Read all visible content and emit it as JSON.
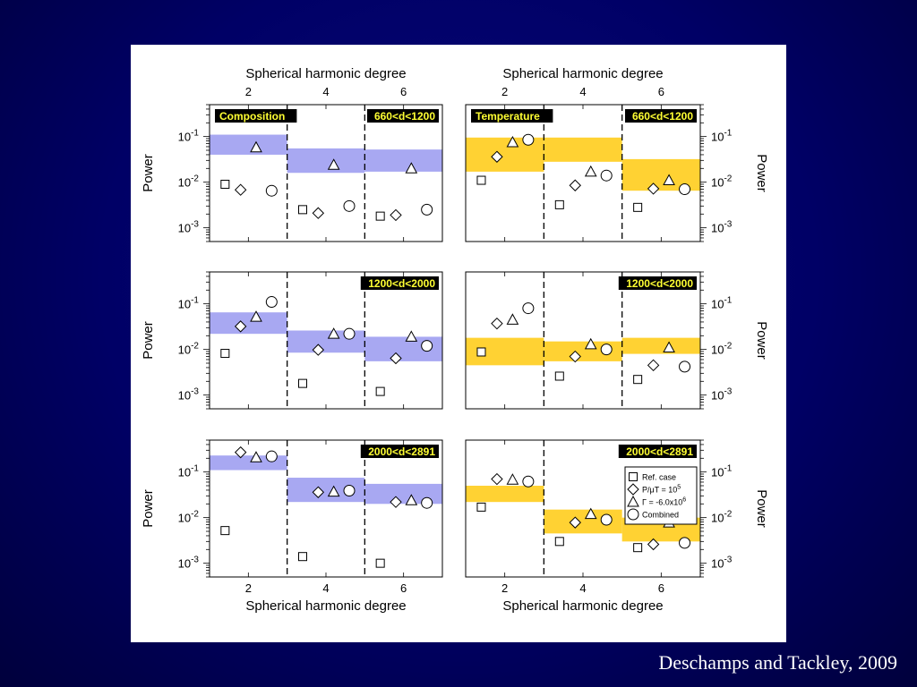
{
  "slide": {
    "citation": "Deschamps and Tackley, 2009"
  },
  "figure": {
    "top_axis_label": "Spherical harmonic degree",
    "bottom_axis_label": "Spherical harmonic degree",
    "ylabel": "Power",
    "x_ticks": [
      2,
      4,
      6
    ],
    "y_tick_labels": [
      "10-1",
      "10-2",
      "10-3"
    ]
  },
  "legend": {
    "entries": [
      {
        "marker": "square",
        "label": "Ref. case"
      },
      {
        "marker": "diamond",
        "label": "P/μT = 10^5"
      },
      {
        "marker": "triangle",
        "label": "Γ = -6.0x10^6"
      },
      {
        "marker": "circle",
        "label": "Combined"
      }
    ]
  },
  "colors": {
    "composition_band": "#a8a8f2",
    "temperature_band": "#ffd233",
    "background": "#000066"
  },
  "chart_data": [
    {
      "type": "scatter",
      "column": "Composition",
      "title": "Composition",
      "range_label": "660<d<1200",
      "xlim": [
        1,
        7
      ],
      "ylim": [
        0.0005,
        0.5
      ],
      "yscale": "log",
      "dividers": [
        3,
        5
      ],
      "bands": [
        {
          "x": [
            1,
            3
          ],
          "y": [
            0.04,
            0.11
          ]
        },
        {
          "x": [
            3,
            5
          ],
          "y": [
            0.016,
            0.055
          ]
        },
        {
          "x": [
            5,
            7
          ],
          "y": [
            0.017,
            0.052
          ]
        }
      ],
      "series": [
        {
          "marker": "square",
          "x": [
            1.4,
            3.4,
            5.4
          ],
          "y": [
            0.009,
            0.0025,
            0.0018
          ]
        },
        {
          "marker": "diamond",
          "x": [
            1.8,
            3.8,
            5.8
          ],
          "y": [
            0.0068,
            0.0021,
            0.0019
          ]
        },
        {
          "marker": "triangle",
          "x": [
            2.2,
            4.2,
            6.2
          ],
          "y": [
            0.058,
            0.024,
            0.02
          ]
        },
        {
          "marker": "circle",
          "x": [
            2.6,
            4.6,
            6.6
          ],
          "y": [
            0.0065,
            0.003,
            0.0025
          ]
        }
      ]
    },
    {
      "type": "scatter",
      "column": "Temperature",
      "title": "Temperature",
      "range_label": "660<d<1200",
      "xlim": [
        1,
        7
      ],
      "ylim": [
        0.0005,
        0.5
      ],
      "yscale": "log",
      "dividers": [
        3,
        5
      ],
      "bands": [
        {
          "x": [
            1,
            3
          ],
          "y": [
            0.017,
            0.095
          ]
        },
        {
          "x": [
            3,
            5
          ],
          "y": [
            0.028,
            0.095
          ]
        },
        {
          "x": [
            5,
            7
          ],
          "y": [
            0.0065,
            0.032
          ]
        }
      ],
      "series": [
        {
          "marker": "square",
          "x": [
            1.4,
            3.4,
            5.4
          ],
          "y": [
            0.011,
            0.0032,
            0.0028
          ]
        },
        {
          "marker": "diamond",
          "x": [
            1.8,
            3.8,
            5.8
          ],
          "y": [
            0.036,
            0.0085,
            0.0072
          ]
        },
        {
          "marker": "triangle",
          "x": [
            2.2,
            4.2,
            6.2
          ],
          "y": [
            0.075,
            0.017,
            0.011
          ]
        },
        {
          "marker": "circle",
          "x": [
            2.6,
            4.6,
            6.6
          ],
          "y": [
            0.085,
            0.014,
            0.007
          ]
        }
      ]
    },
    {
      "type": "scatter",
      "column": "Composition",
      "title": "",
      "range_label": "1200<d<2000",
      "xlim": [
        1,
        7
      ],
      "ylim": [
        0.0005,
        0.5
      ],
      "yscale": "log",
      "dividers": [
        3,
        5
      ],
      "bands": [
        {
          "x": [
            1,
            3
          ],
          "y": [
            0.022,
            0.065
          ]
        },
        {
          "x": [
            3,
            5
          ],
          "y": [
            0.0085,
            0.026
          ]
        },
        {
          "x": [
            5,
            7
          ],
          "y": [
            0.0055,
            0.019
          ]
        }
      ],
      "series": [
        {
          "marker": "square",
          "x": [
            1.4,
            3.4,
            5.4
          ],
          "y": [
            0.0082,
            0.0018,
            0.0012
          ]
        },
        {
          "marker": "diamond",
          "x": [
            1.8,
            3.8,
            5.8
          ],
          "y": [
            0.032,
            0.0098,
            0.0064
          ]
        },
        {
          "marker": "triangle",
          "x": [
            2.2,
            4.2,
            6.2
          ],
          "y": [
            0.052,
            0.022,
            0.019
          ]
        },
        {
          "marker": "circle",
          "x": [
            2.6,
            4.6,
            6.6
          ],
          "y": [
            0.11,
            0.022,
            0.012
          ]
        }
      ]
    },
    {
      "type": "scatter",
      "column": "Temperature",
      "title": "",
      "range_label": "1200<d<2000",
      "xlim": [
        1,
        7
      ],
      "ylim": [
        0.0005,
        0.5
      ],
      "yscale": "log",
      "dividers": [
        3,
        5
      ],
      "bands": [
        {
          "x": [
            1,
            3
          ],
          "y": [
            0.0045,
            0.018
          ]
        },
        {
          "x": [
            3,
            5
          ],
          "y": [
            0.0055,
            0.015
          ]
        },
        {
          "x": [
            5,
            7
          ],
          "y": [
            0.008,
            0.018
          ]
        }
      ],
      "series": [
        {
          "marker": "square",
          "x": [
            1.4,
            3.4,
            5.4
          ],
          "y": [
            0.0088,
            0.0026,
            0.0022
          ]
        },
        {
          "marker": "diamond",
          "x": [
            1.8,
            3.8,
            5.8
          ],
          "y": [
            0.037,
            0.007,
            0.0045
          ]
        },
        {
          "marker": "triangle",
          "x": [
            2.2,
            4.2,
            6.2
          ],
          "y": [
            0.045,
            0.013,
            0.011
          ]
        },
        {
          "marker": "circle",
          "x": [
            2.6,
            4.6,
            6.6
          ],
          "y": [
            0.08,
            0.01,
            0.0042
          ]
        }
      ]
    },
    {
      "type": "scatter",
      "column": "Composition",
      "title": "",
      "range_label": "2000<d<2891",
      "xlim": [
        1,
        7
      ],
      "ylim": [
        0.0005,
        0.5
      ],
      "yscale": "log",
      "dividers": [
        3,
        5
      ],
      "bands": [
        {
          "x": [
            1,
            3
          ],
          "y": [
            0.11,
            0.23
          ]
        },
        {
          "x": [
            3,
            5
          ],
          "y": [
            0.022,
            0.075
          ]
        },
        {
          "x": [
            5,
            7
          ],
          "y": [
            0.02,
            0.055
          ]
        }
      ],
      "series": [
        {
          "marker": "square",
          "x": [
            1.4,
            3.4,
            5.4
          ],
          "y": [
            0.0052,
            0.0014,
            0.001
          ]
        },
        {
          "marker": "diamond",
          "x": [
            1.8,
            3.8,
            5.8
          ],
          "y": [
            0.27,
            0.036,
            0.022
          ]
        },
        {
          "marker": "triangle",
          "x": [
            2.2,
            4.2,
            6.2
          ],
          "y": [
            0.21,
            0.037,
            0.024
          ]
        },
        {
          "marker": "circle",
          "x": [
            2.6,
            4.6,
            6.6
          ],
          "y": [
            0.22,
            0.039,
            0.021
          ]
        }
      ]
    },
    {
      "type": "scatter",
      "column": "Temperature",
      "title": "",
      "range_label": "2000<d<2891",
      "xlim": [
        1,
        7
      ],
      "ylim": [
        0.0005,
        0.5
      ],
      "yscale": "log",
      "dividers": [
        3
      ],
      "bands": [
        {
          "x": [
            1,
            3
          ],
          "y": [
            0.022,
            0.05
          ]
        },
        {
          "x": [
            3,
            5
          ],
          "y": [
            0.0045,
            0.015
          ]
        },
        {
          "x": [
            5,
            7
          ],
          "y": [
            0.003,
            0.01
          ]
        }
      ],
      "series": [
        {
          "marker": "square",
          "x": [
            1.4,
            3.4,
            5.4
          ],
          "y": [
            0.017,
            0.003,
            0.0022
          ]
        },
        {
          "marker": "diamond",
          "x": [
            1.8,
            3.8,
            5.8
          ],
          "y": [
            0.07,
            0.0078,
            0.0026
          ]
        },
        {
          "marker": "triangle",
          "x": [
            2.2,
            4.2,
            6.2
          ],
          "y": [
            0.068,
            0.012,
            0.0078
          ]
        },
        {
          "marker": "circle",
          "x": [
            2.6,
            4.6,
            6.6
          ],
          "y": [
            0.062,
            0.009,
            0.0028
          ]
        }
      ]
    }
  ]
}
